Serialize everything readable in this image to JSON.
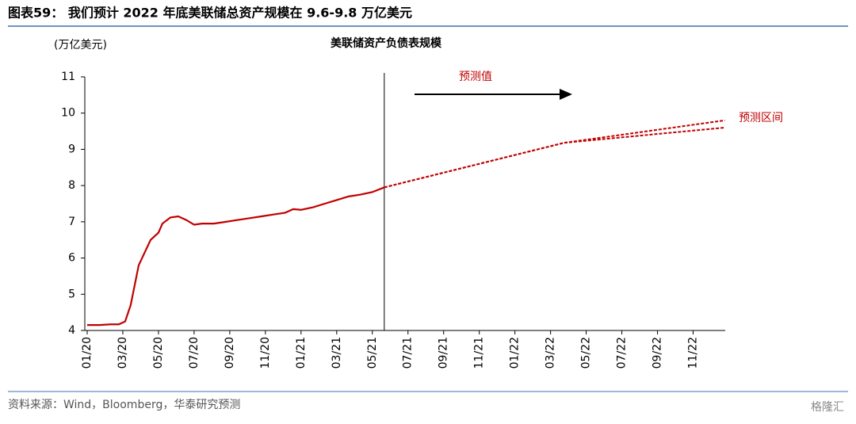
{
  "header": {
    "title": "图表59：  我们预计 2022 年底美联储总资产规模在 9.6-9.8 万亿美元"
  },
  "chart_data": {
    "type": "line",
    "title": "美联储资产负债表规模",
    "y_label": "(万亿美元)",
    "annotations": [
      "预测值",
      "预测区间"
    ],
    "xlim": [
      0,
      35.8
    ],
    "xticks": [
      {
        "value": 0,
        "label": "01/20"
      },
      {
        "value": 2,
        "label": "03/20"
      },
      {
        "value": 4,
        "label": "05/20"
      },
      {
        "value": 6,
        "label": "07/20"
      },
      {
        "value": 8,
        "label": "09/20"
      },
      {
        "value": 10,
        "label": "11/20"
      },
      {
        "value": 12,
        "label": "01/21"
      },
      {
        "value": 14,
        "label": "03/21"
      },
      {
        "value": 16,
        "label": "05/21"
      },
      {
        "value": 18,
        "label": "07/21"
      },
      {
        "value": 20,
        "label": "09/21"
      },
      {
        "value": 22,
        "label": "11/21"
      },
      {
        "value": 24,
        "label": "01/22"
      },
      {
        "value": 26,
        "label": "03/22"
      },
      {
        "value": 28,
        "label": "05/22"
      },
      {
        "value": 30,
        "label": "07/22"
      },
      {
        "value": 32,
        "label": "09/22"
      },
      {
        "value": 34,
        "label": "11/22"
      }
    ],
    "ylim": [
      4,
      11
    ],
    "yticks": [
      4,
      5,
      6,
      7,
      8,
      9,
      10,
      11
    ],
    "forecast_start": 16.67,
    "series": [
      {
        "color": "#c00000",
        "dashed": false,
        "x": [
          0,
          0.67,
          1.33,
          1.78,
          2.13,
          2.44,
          2.89,
          3.56,
          4,
          4.22,
          4.67,
          5.11,
          5.56,
          6,
          6.44,
          7.11,
          7.78,
          8.44,
          9.11,
          9.78,
          10.44,
          11.11,
          11.56,
          12,
          12.67,
          13.33,
          14,
          14.67,
          15.33,
          16,
          16.67
        ],
        "values": [
          4.15,
          4.15,
          4.17,
          4.17,
          4.25,
          4.7,
          5.8,
          6.5,
          6.7,
          6.95,
          7.12,
          7.15,
          7.05,
          6.92,
          6.95,
          6.95,
          7,
          7.05,
          7.1,
          7.15,
          7.2,
          7.25,
          7.35,
          7.33,
          7.4,
          7.5,
          7.6,
          7.7,
          7.75,
          7.82,
          7.95
        ]
      },
      {
        "color": "#c00000",
        "dashed": true,
        "x": [
          16.67,
          26.76,
          35.78
        ],
        "values": [
          7.95,
          9.18,
          9.8
        ]
      },
      {
        "color": "#c00000",
        "dashed": true,
        "x": [
          16.67,
          26.76,
          35.78
        ],
        "values": [
          7.95,
          9.18,
          9.6
        ]
      }
    ]
  },
  "footer": {
    "source": "资料来源：Wind，Bloomberg，华泰研究预测",
    "watermark": "格隆汇"
  }
}
